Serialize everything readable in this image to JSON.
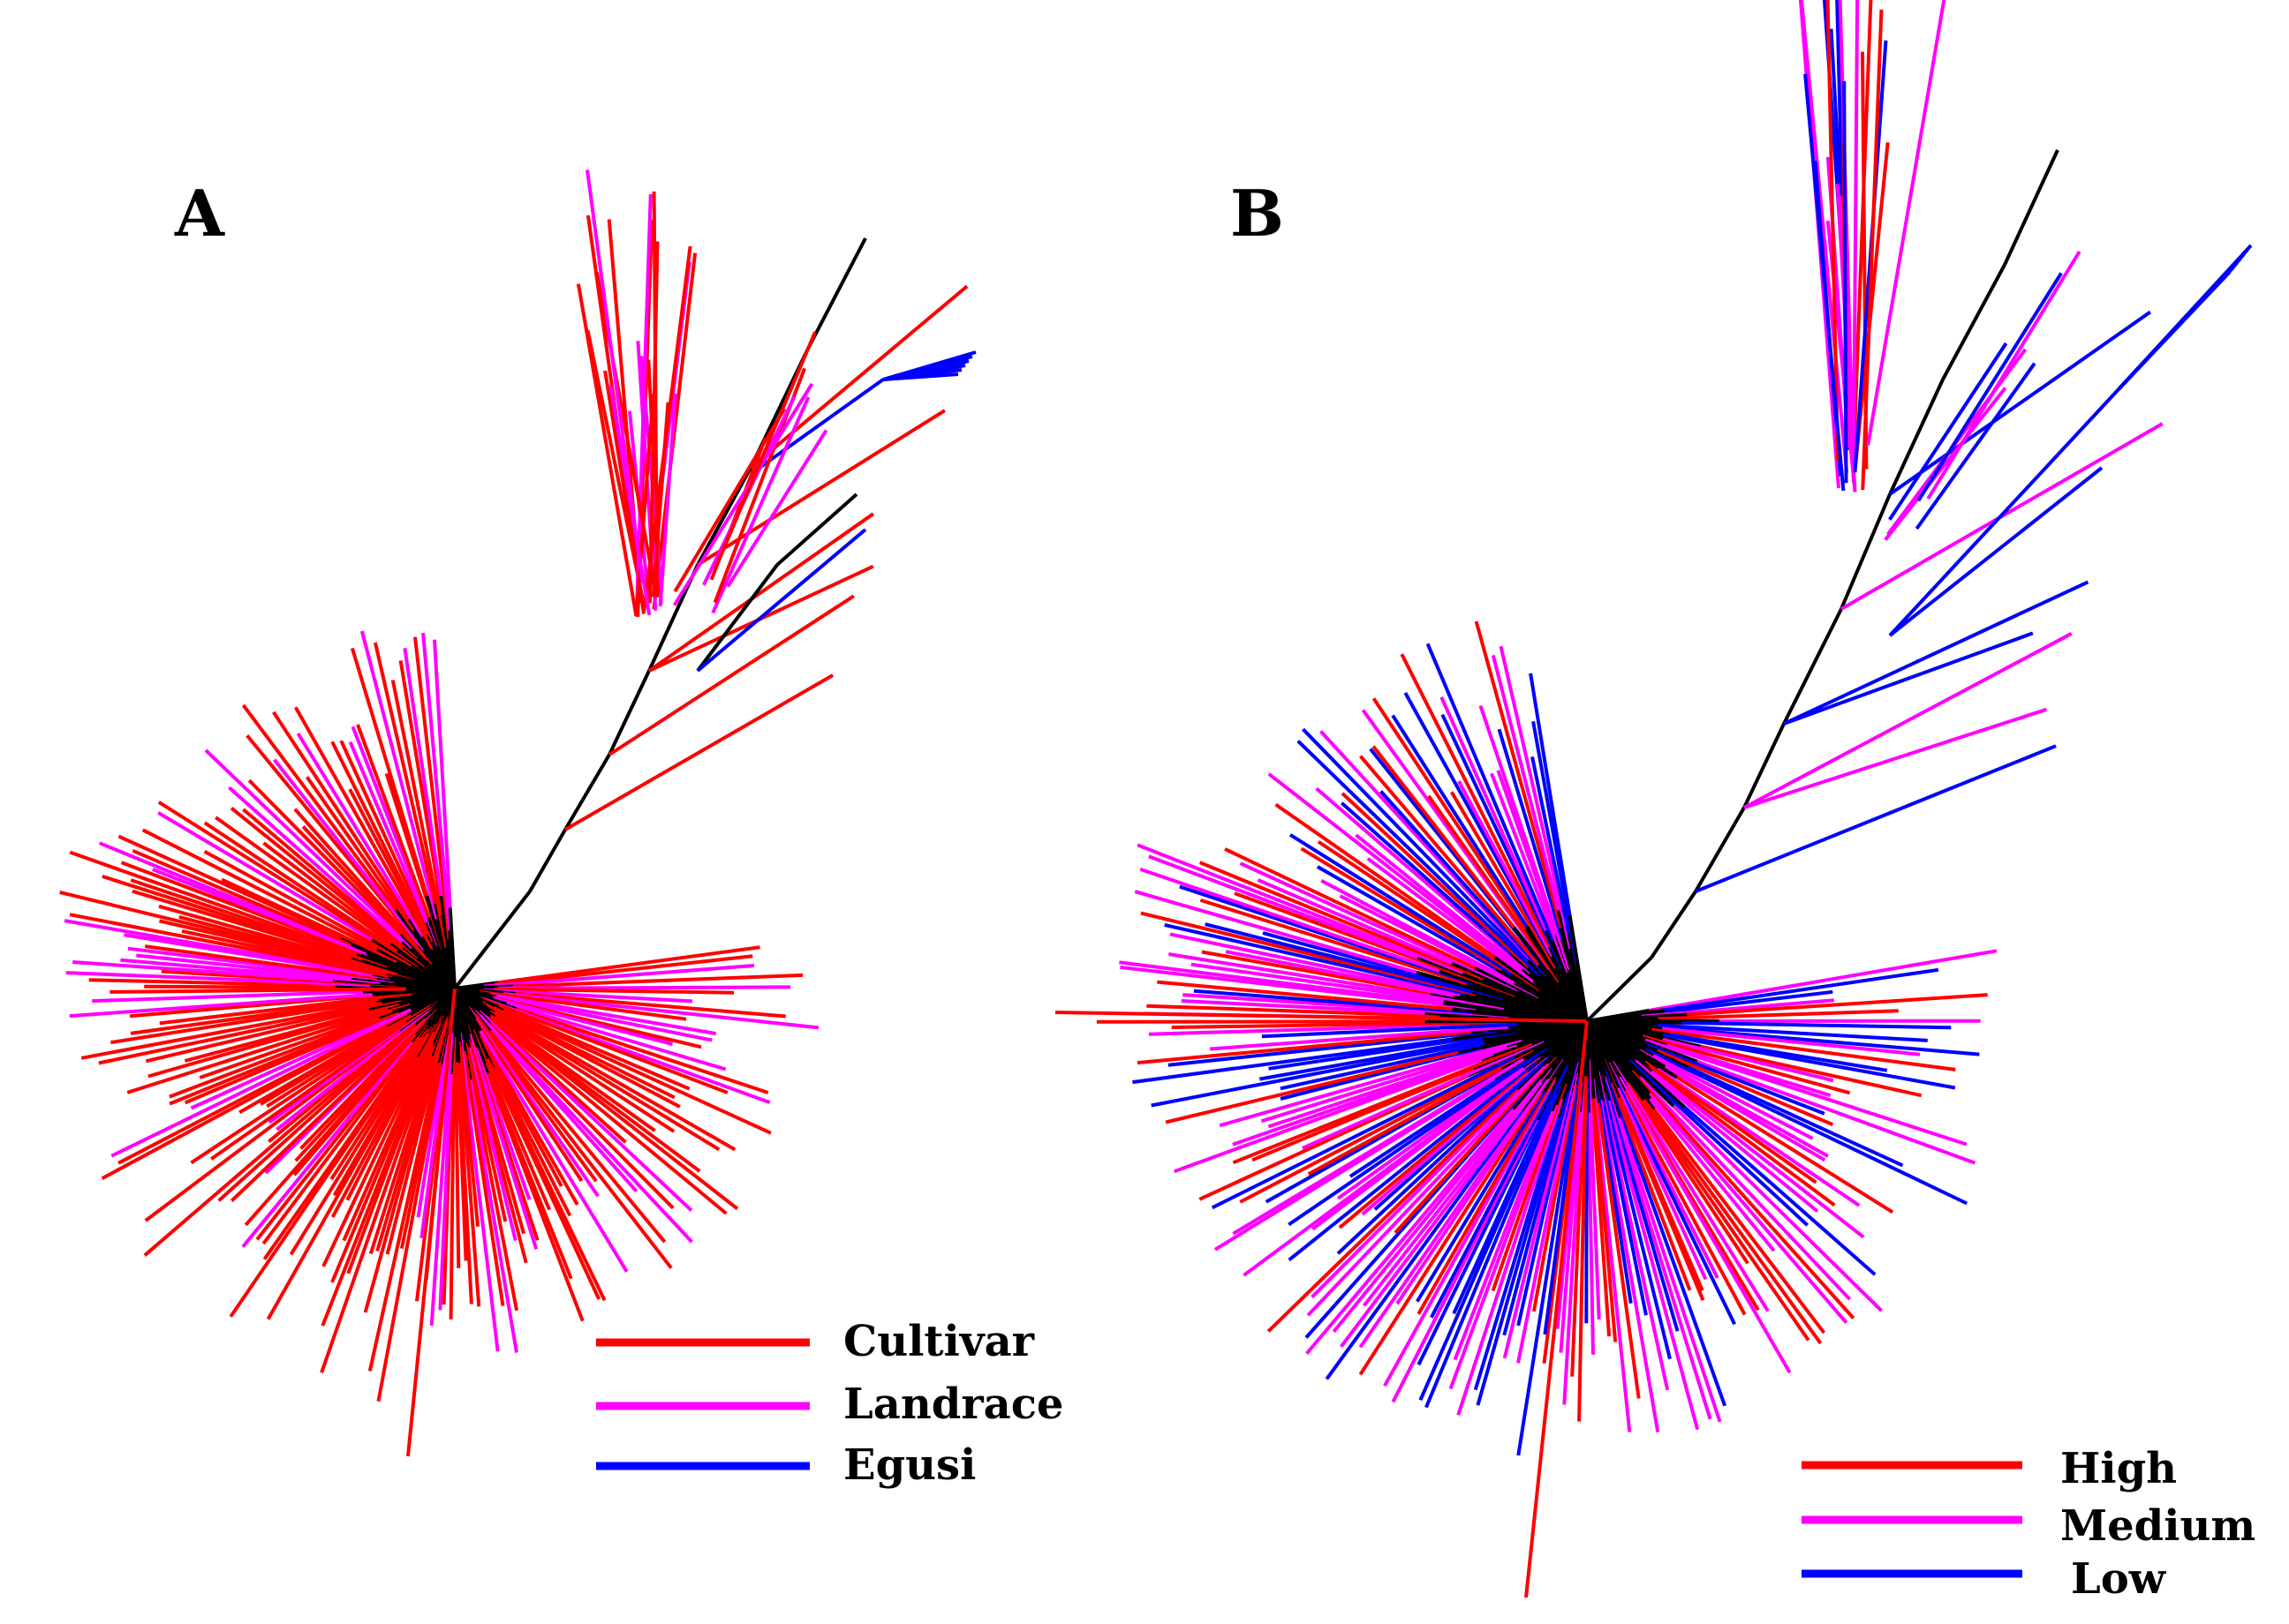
{
  "panels": [
    {
      "label": "A",
      "legend": [
        {
          "text": "Cultivar",
          "color": "#ff0000"
        },
        {
          "text": "Landrace",
          "color": "#ff00ff"
        },
        {
          "text": "Egusi",
          "color": "#0000ff"
        }
      ]
    },
    {
      "label": "B",
      "legend": [
        {
          "text": "High",
          "color": "#ff0000"
        },
        {
          "text": "Medium",
          "color": "#ff00ff"
        },
        {
          "text": "Low",
          "color": "#0000ff"
        }
      ]
    }
  ],
  "colors": {
    "backbone": "#000000",
    "red": "#ff0000",
    "magenta": "#ff00ff",
    "blue": "#0000ff"
  }
}
